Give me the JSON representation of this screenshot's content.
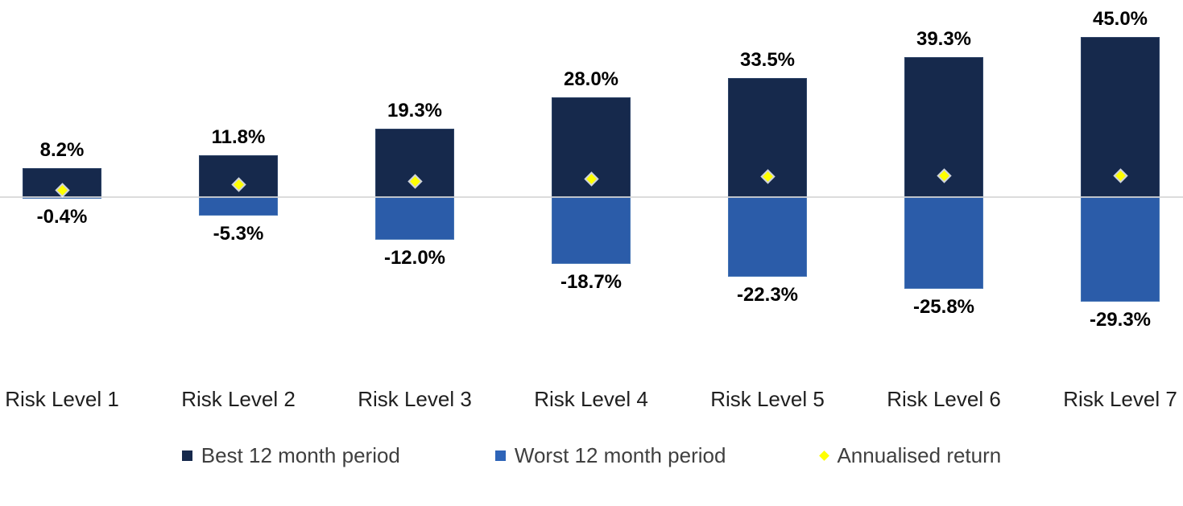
{
  "chart_data": {
    "type": "bar",
    "title": "",
    "xlabel": "",
    "ylabel": "",
    "categories": [
      "Risk Level 1",
      "Risk Level 2",
      "Risk Level 3",
      "Risk Level 4",
      "Risk Level 5",
      "Risk Level 6",
      "Risk Level 7"
    ],
    "series": [
      {
        "name": "Best 12 month period",
        "type": "column",
        "color": "#16294C",
        "values": [
          8.2,
          11.8,
          19.3,
          28.0,
          33.5,
          39.3,
          45.0
        ],
        "labels": [
          "8.2%",
          "11.8%",
          "19.3%",
          "28.0%",
          "33.5%",
          "39.3%",
          "45.0%"
        ]
      },
      {
        "name": "Worst 12 month period",
        "type": "column",
        "color": "#2B5CA9",
        "legend_color": "#2E64B8",
        "values": [
          -0.4,
          -5.3,
          -12.0,
          -18.7,
          -22.3,
          -25.8,
          -29.3
        ],
        "labels": [
          "-0.4%",
          "-5.3%",
          "-12.0%",
          "-18.7%",
          "-22.3%",
          "-25.8%",
          "-29.3%"
        ]
      },
      {
        "name": "Annualised return",
        "type": "scatter",
        "marker": "diamond",
        "color": "#FFFF00",
        "values": [
          2.0,
          3.4,
          4.3,
          5.2,
          5.7,
          5.9,
          6.1
        ]
      }
    ],
    "ylim": [
      -35,
      50
    ],
    "y_axis_visible": false,
    "grid": false,
    "zero_line_color": "#D6D6D6",
    "data_labels": true,
    "legend_position": "bottom"
  }
}
